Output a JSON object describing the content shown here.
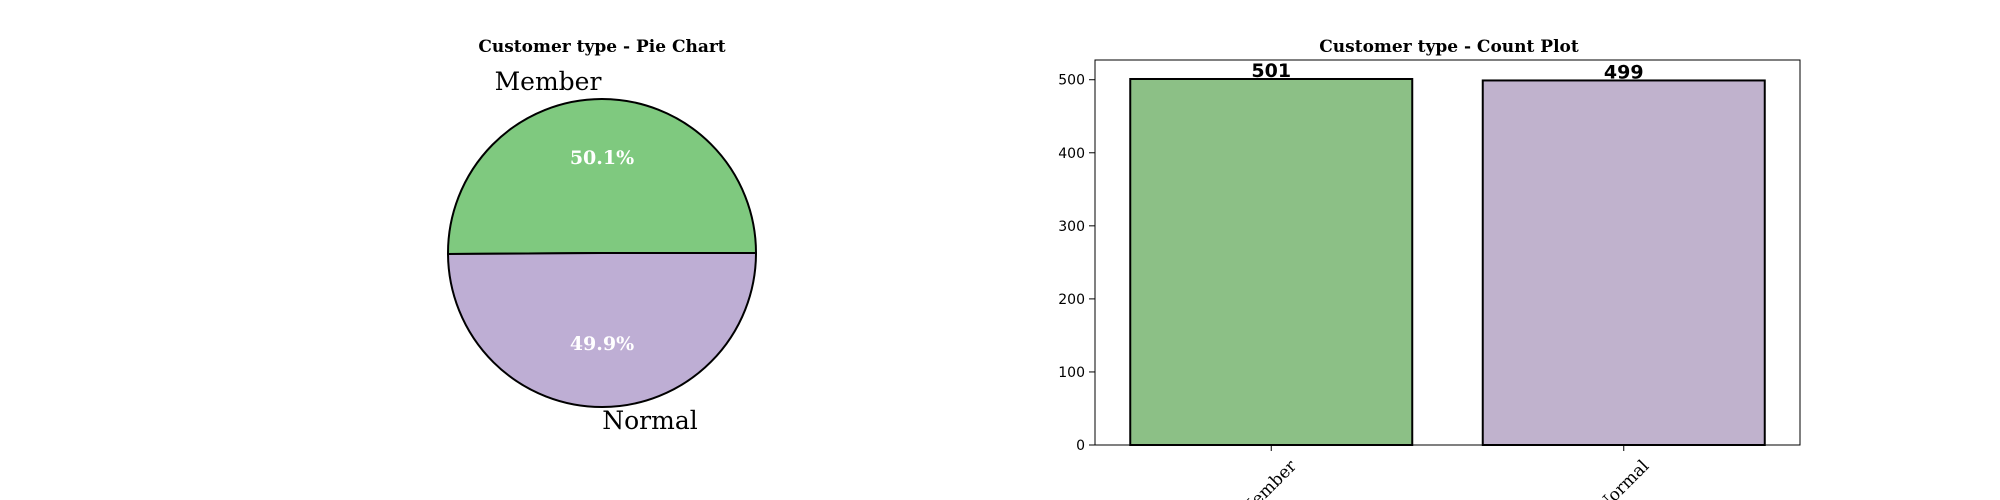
{
  "chart_data": [
    {
      "type": "pie",
      "title": "Customer type - Pie Chart",
      "labels": [
        "Member",
        "Normal"
      ],
      "values": [
        501,
        499
      ],
      "percent_labels": [
        "50.1%",
        "49.9%"
      ],
      "colors": [
        "#7fc97f",
        "#beaed4"
      ]
    },
    {
      "type": "bar",
      "title": "Customer type - Count Plot",
      "categories": [
        "Member",
        "Normal"
      ],
      "values": [
        501,
        499
      ],
      "value_labels": [
        "501",
        "499"
      ],
      "xlabel": "",
      "ylabel": "",
      "ylim": [
        0,
        527
      ],
      "yticks": [
        0,
        100,
        200,
        300,
        400,
        500
      ],
      "colors": [
        "#8cc086",
        "#c0b2cd"
      ]
    }
  ]
}
